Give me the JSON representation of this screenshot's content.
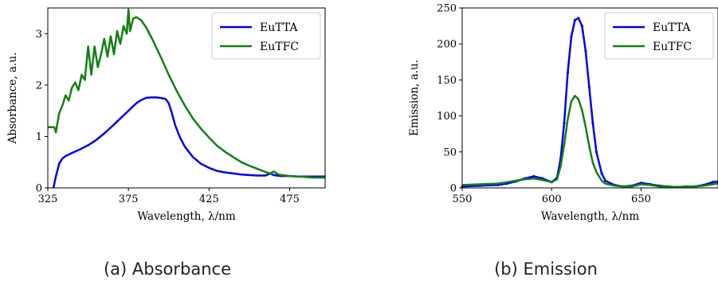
{
  "captions": [
    "(a) Absorbance",
    "(b) Emission"
  ],
  "colors": {
    "blue": "#0000ee",
    "green": "#138013"
  },
  "chart_data": [
    {
      "type": "line",
      "title": "",
      "xlabel": "Wavelength, λ/nm",
      "ylabel": "Absorbance, a.u.",
      "xlim": [
        325,
        497
      ],
      "ylim": [
        0,
        3.5
      ],
      "xticks": [
        325,
        375,
        425,
        475
      ],
      "yticks": [
        0,
        1,
        2,
        3
      ],
      "legend": "top-right",
      "grid": false,
      "series": [
        {
          "name": "EuTTA",
          "color": "#0000ee",
          "x": [
            328.5,
            330,
            332,
            334,
            336,
            340,
            345,
            350,
            355,
            360,
            365,
            370,
            375,
            380,
            383,
            386,
            389,
            392,
            395,
            398,
            400,
            402,
            404,
            407,
            410,
            415,
            420,
            425,
            430,
            435,
            440,
            445,
            450,
            455,
            460,
            463,
            465,
            467,
            470,
            475,
            480,
            485,
            490,
            497
          ],
          "y": [
            0.0,
            0.22,
            0.47,
            0.57,
            0.62,
            0.68,
            0.75,
            0.83,
            0.93,
            1.06,
            1.2,
            1.35,
            1.5,
            1.65,
            1.71,
            1.75,
            1.76,
            1.76,
            1.75,
            1.73,
            1.65,
            1.45,
            1.22,
            0.98,
            0.8,
            0.6,
            0.47,
            0.39,
            0.33,
            0.3,
            0.28,
            0.26,
            0.25,
            0.24,
            0.24,
            0.28,
            0.25,
            0.24,
            0.23,
            0.23,
            0.22,
            0.22,
            0.22,
            0.22
          ]
        },
        {
          "name": "EuTFC",
          "color": "#138013",
          "x": [
            325,
            329,
            330,
            332,
            334,
            336,
            338,
            340,
            342,
            344,
            346,
            348,
            350,
            352,
            354,
            356,
            358,
            360,
            362,
            364,
            366,
            368,
            370,
            372,
            374,
            375,
            376,
            378,
            380,
            383,
            386,
            390,
            395,
            400,
            405,
            410,
            415,
            420,
            425,
            430,
            435,
            440,
            445,
            450,
            455,
            460,
            463,
            465,
            468,
            470,
            475,
            480,
            485,
            490,
            497
          ],
          "y": [
            1.18,
            1.18,
            1.08,
            1.45,
            1.6,
            1.8,
            1.7,
            1.95,
            2.05,
            1.9,
            2.2,
            2.1,
            2.75,
            2.2,
            2.75,
            2.35,
            2.6,
            2.9,
            2.55,
            2.95,
            2.6,
            3.05,
            2.8,
            3.15,
            3.0,
            3.47,
            3.05,
            3.3,
            3.32,
            3.26,
            3.12,
            2.88,
            2.55,
            2.2,
            1.88,
            1.6,
            1.35,
            1.15,
            0.98,
            0.82,
            0.7,
            0.6,
            0.5,
            0.43,
            0.37,
            0.31,
            0.28,
            0.32,
            0.26,
            0.25,
            0.23,
            0.22,
            0.21,
            0.2,
            0.2
          ]
        }
      ]
    },
    {
      "type": "line",
      "title": "",
      "xlabel": "Wavelength, λ/nm",
      "ylabel": "Emission, a.u.",
      "xlim": [
        550,
        693
      ],
      "ylim": [
        0,
        250
      ],
      "xticks": [
        550,
        600,
        650
      ],
      "yticks": [
        0,
        50,
        100,
        150,
        200,
        250
      ],
      "legend": "top-right",
      "grid": false,
      "series": [
        {
          "name": "EuTTA",
          "color": "#0000ee",
          "x": [
            550,
            560,
            570,
            575,
            580,
            585,
            590,
            595,
            600,
            603,
            605,
            607,
            609,
            611,
            613,
            615,
            617,
            619,
            621,
            623,
            625,
            628,
            630,
            635,
            640,
            645,
            650,
            655,
            660,
            665,
            670,
            675,
            680,
            685,
            690,
            693
          ],
          "y": [
            2,
            3,
            4,
            6,
            9,
            13,
            16,
            13,
            8,
            14,
            40,
            90,
            160,
            210,
            233,
            236,
            225,
            190,
            140,
            90,
            50,
            20,
            10,
            4,
            2,
            3,
            7,
            5,
            3,
            2,
            1,
            2,
            2,
            4,
            8,
            9
          ],
          "markers": true
        },
        {
          "name": "EuTFC",
          "color": "#138013",
          "x": [
            550,
            560,
            570,
            575,
            580,
            585,
            590,
            595,
            600,
            603,
            605,
            607,
            609,
            611,
            613,
            615,
            617,
            619,
            621,
            623,
            625,
            628,
            630,
            635,
            640,
            645,
            650,
            655,
            660,
            665,
            670,
            675,
            680,
            685,
            690,
            693
          ],
          "y": [
            4,
            5,
            6,
            8,
            10,
            12,
            13,
            11,
            8,
            12,
            30,
            60,
            95,
            120,
            128,
            123,
            108,
            85,
            58,
            35,
            22,
            10,
            6,
            3,
            2,
            2,
            5,
            4,
            2,
            2,
            1,
            2,
            2,
            3,
            5,
            6
          ]
        }
      ]
    }
  ]
}
